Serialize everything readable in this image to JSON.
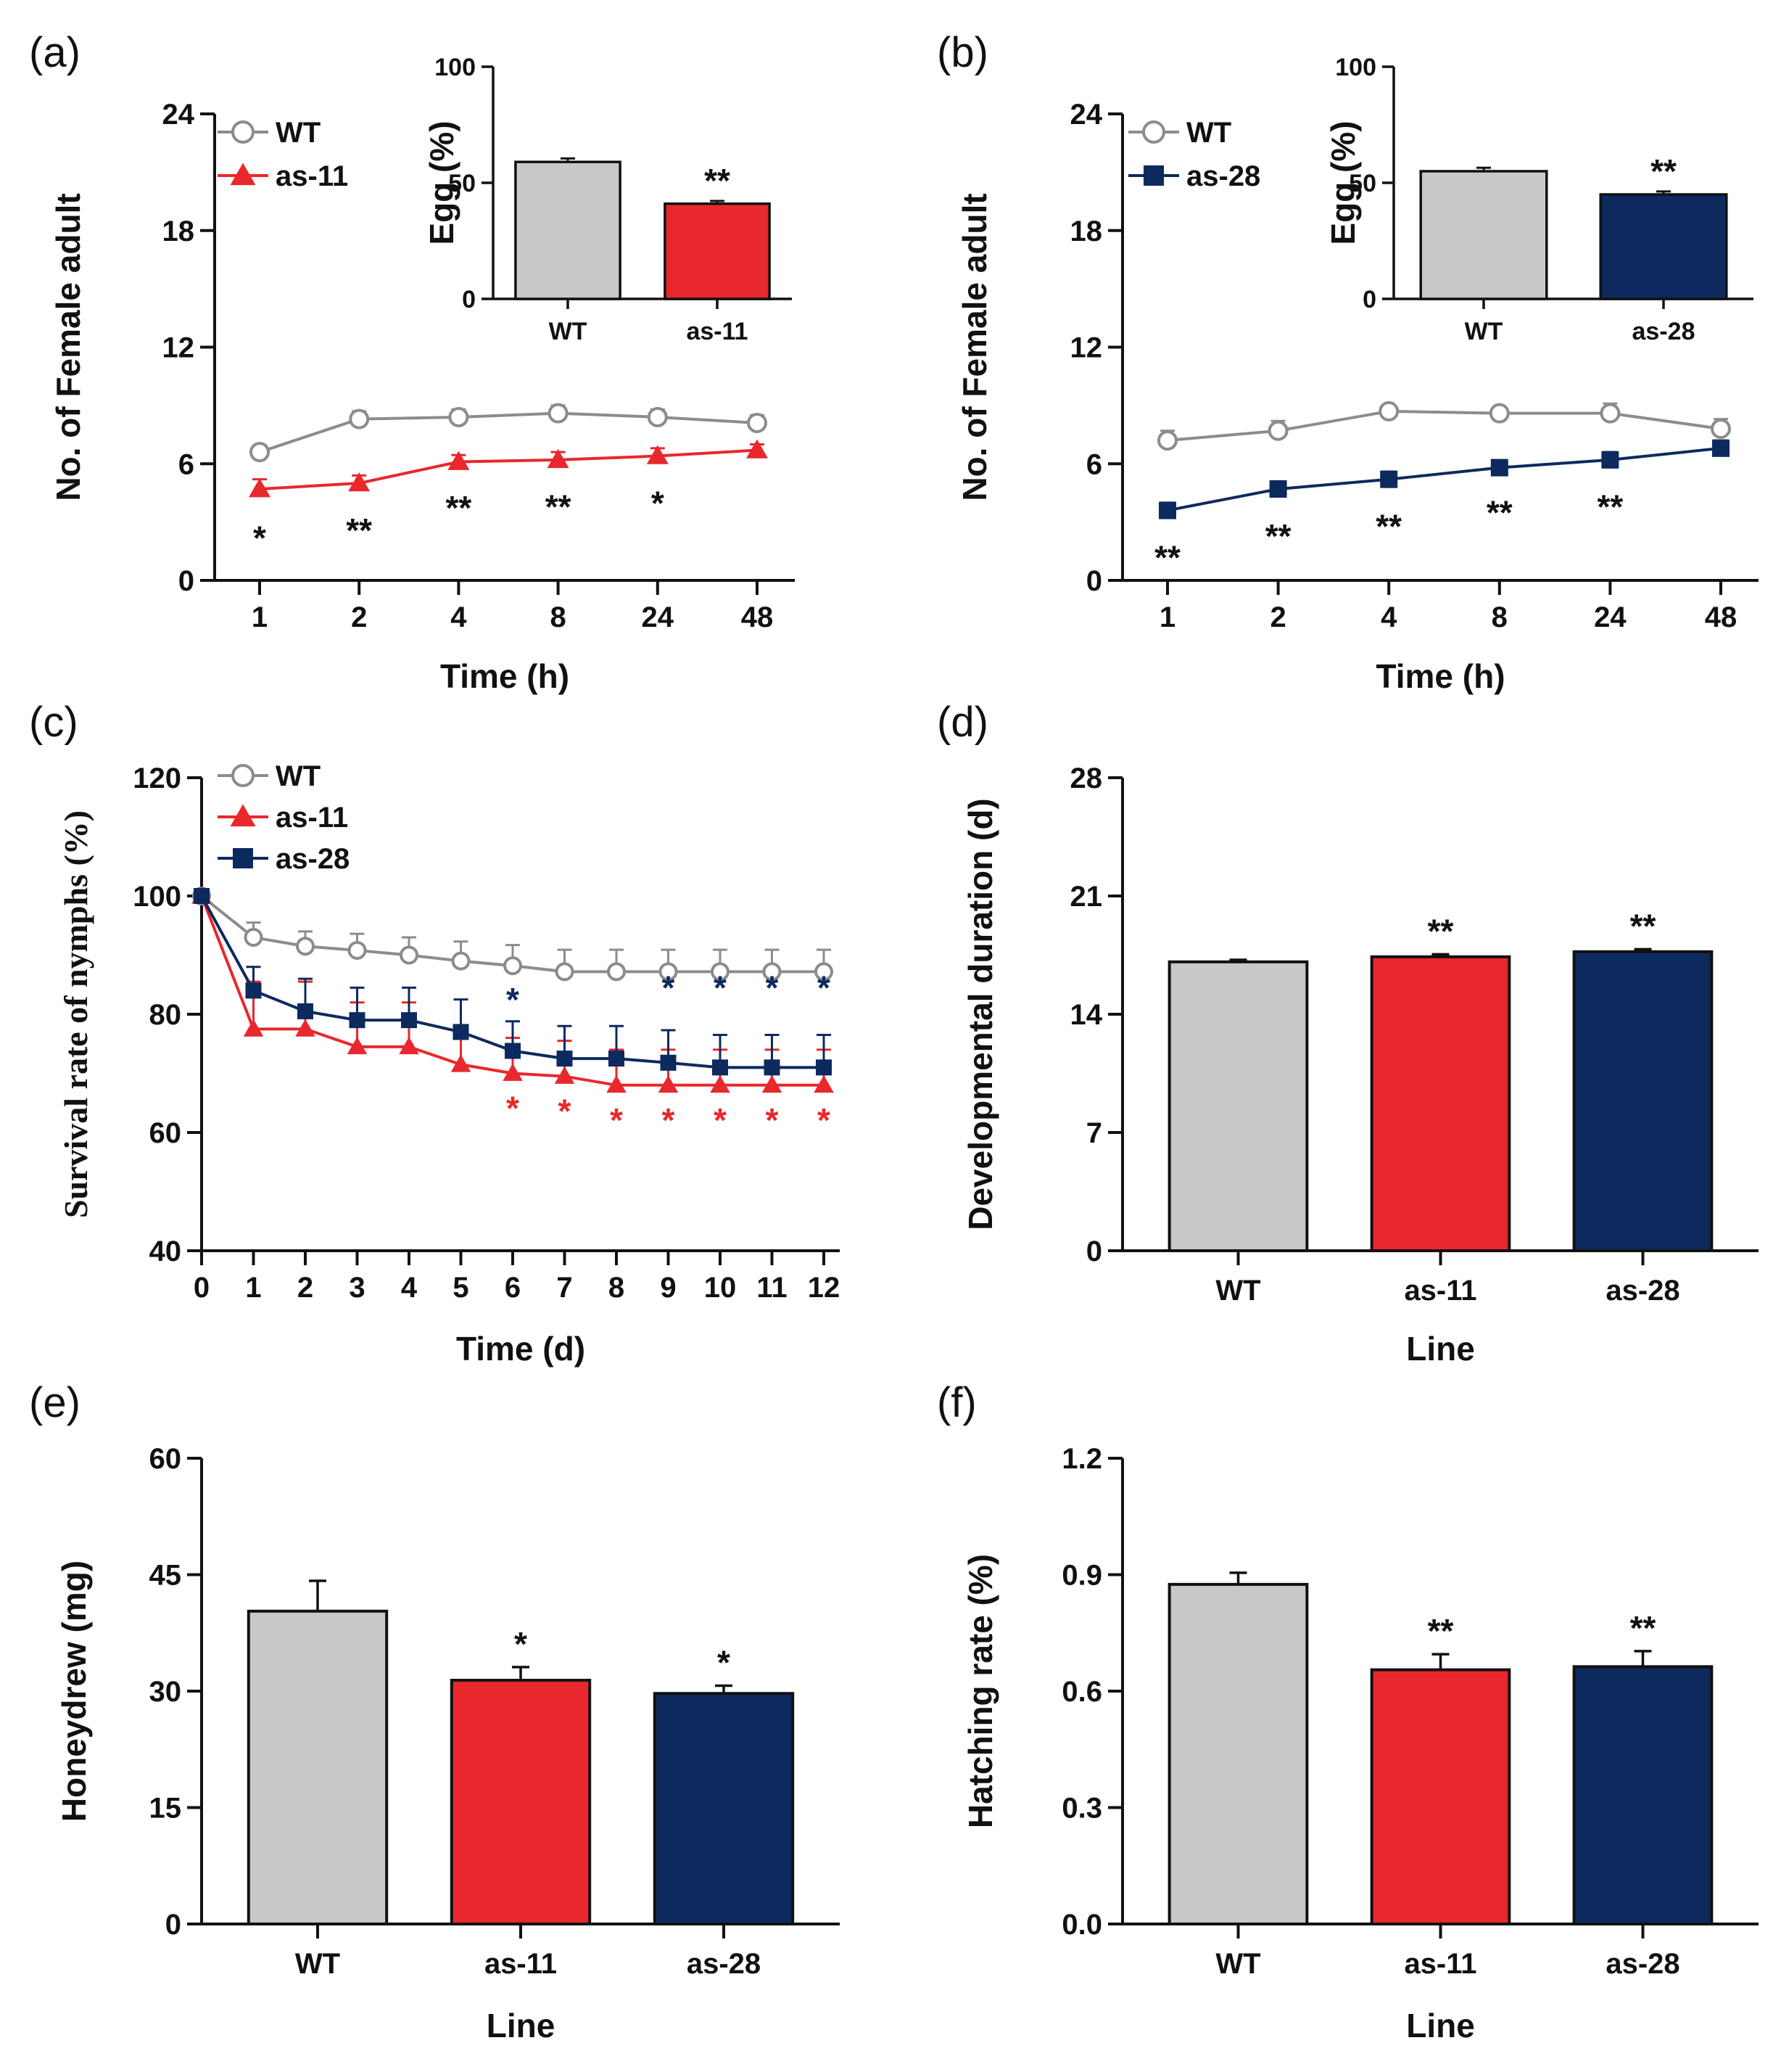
{
  "colors": {
    "wt": "#c8c8c8",
    "wt_line": "#8c8c8c",
    "as11": "#e8282c",
    "as28": "#0d2a5e",
    "axis": "#111111"
  },
  "chart_data": [
    {
      "id": "a",
      "panel": "(a)",
      "type": "line",
      "xlabel": "Time (h)",
      "ylabel": "No. of Female adult",
      "categories": [
        "1",
        "2",
        "4",
        "8",
        "24",
        "48"
      ],
      "ylim": [
        0,
        24
      ],
      "yticks": [
        "0",
        "6",
        "12",
        "18",
        "24"
      ],
      "series": [
        {
          "name": "WT",
          "values": [
            6.6,
            8.3,
            8.4,
            8.6,
            8.4,
            8.1
          ],
          "errors": [
            0.35,
            0.4,
            0.4,
            0.4,
            0.4,
            0.4
          ],
          "marker": "circle",
          "color": "#8c8c8c"
        },
        {
          "name": "as-11",
          "values": [
            4.7,
            5.0,
            6.1,
            6.2,
            6.4,
            6.7
          ],
          "errors": [
            0.5,
            0.4,
            0.35,
            0.4,
            0.4,
            0.3
          ],
          "marker": "triangle",
          "color": "#e8282c"
        }
      ],
      "annotations": [
        "*",
        "**",
        "**",
        "**",
        "*",
        ""
      ],
      "inset": {
        "type": "bar",
        "ylabel": "Egg (%)",
        "categories": [
          "WT",
          "as-11"
        ],
        "values": [
          59,
          41
        ],
        "errors": [
          1.5,
          1.2
        ],
        "ylim": [
          0,
          100
        ],
        "yticks": [
          "0",
          "50",
          "100"
        ],
        "annotations": [
          "",
          "**"
        ],
        "colors": [
          "#c8c8c8",
          "#e8282c"
        ]
      }
    },
    {
      "id": "b",
      "panel": "(b)",
      "type": "line",
      "xlabel": "Time (h)",
      "ylabel": "No. of Female adult",
      "categories": [
        "1",
        "2",
        "4",
        "8",
        "24",
        "48"
      ],
      "ylim": [
        0,
        24
      ],
      "yticks": [
        "0",
        "6",
        "12",
        "18",
        "24"
      ],
      "series": [
        {
          "name": "WT",
          "values": [
            7.2,
            7.7,
            8.7,
            8.6,
            8.6,
            7.8
          ],
          "errors": [
            0.5,
            0.5,
            0.3,
            0.3,
            0.5,
            0.5
          ],
          "marker": "circle",
          "color": "#8c8c8c"
        },
        {
          "name": "as-28",
          "values": [
            3.6,
            4.7,
            5.2,
            5.8,
            6.2,
            6.8
          ],
          "errors": [
            0.4,
            0.4,
            0.4,
            0.3,
            0.4,
            0.4
          ],
          "marker": "square",
          "color": "#0d2a5e"
        }
      ],
      "annotations": [
        "**",
        "**",
        "**",
        "**",
        "**",
        ""
      ],
      "inset": {
        "type": "bar",
        "ylabel": "Egg (%)",
        "categories": [
          "WT",
          "as-28"
        ],
        "values": [
          55,
          45
        ],
        "errors": [
          1.5,
          1.3
        ],
        "ylim": [
          0,
          100
        ],
        "yticks": [
          "0",
          "50",
          "100"
        ],
        "annotations": [
          "",
          "**"
        ],
        "colors": [
          "#c8c8c8",
          "#0d2a5e"
        ]
      }
    },
    {
      "id": "c",
      "panel": "(c)",
      "type": "line",
      "xlabel": "Time (d)",
      "ylabel": "Survival rate of nymphs (%)",
      "categories": [
        "0",
        "1",
        "2",
        "3",
        "4",
        "5",
        "6",
        "7",
        "8",
        "9",
        "10",
        "11",
        "12"
      ],
      "ylim": [
        40,
        120
      ],
      "yticks": [
        "40",
        "60",
        "80",
        "100",
        "120"
      ],
      "series": [
        {
          "name": "WT",
          "values": [
            100,
            93,
            91.5,
            90.8,
            90,
            89,
            88.2,
            87.2,
            87.2,
            87.2,
            87.2,
            87.2,
            87.2
          ],
          "errors": [
            0,
            2.5,
            2.5,
            2.8,
            3,
            3.3,
            3.5,
            3.7,
            3.7,
            3.7,
            3.7,
            3.7,
            3.7
          ],
          "marker": "circle",
          "color": "#8c8c8c"
        },
        {
          "name": "as-11",
          "values": [
            100,
            77.5,
            77.5,
            74.5,
            74.5,
            71.5,
            70,
            69.5,
            68,
            68,
            68,
            68,
            68
          ],
          "errors": [
            0,
            8,
            8,
            7.5,
            7.5,
            6.5,
            6,
            6,
            6,
            6,
            6,
            6,
            6
          ],
          "marker": "triangle",
          "color": "#e8282c"
        },
        {
          "name": "as-28",
          "values": [
            100,
            84,
            80.5,
            79,
            79,
            77,
            73.8,
            72.5,
            72.5,
            71.8,
            71,
            71,
            71
          ],
          "errors": [
            0,
            4,
            5.5,
            5.5,
            5.5,
            5.5,
            5,
            5.5,
            5.5,
            5.5,
            5.5,
            5.5,
            5.5
          ],
          "marker": "square",
          "color": "#0d2a5e"
        }
      ],
      "annotations": [
        {
          "series": "as-28",
          "labels": [
            "",
            "",
            "",
            "",
            "",
            "",
            "*",
            "",
            "",
            "*",
            "*",
            "*",
            "*"
          ]
        },
        {
          "series": "as-11",
          "labels": [
            "",
            "",
            "",
            "",
            "",
            "",
            "*",
            "*",
            "*",
            "*",
            "*",
            "*",
            "*"
          ]
        }
      ]
    },
    {
      "id": "d",
      "panel": "(d)",
      "type": "bar",
      "xlabel": "Line",
      "ylabel": "Developmental duration (d)",
      "categories": [
        "WT",
        "as-11",
        "as-28"
      ],
      "values": [
        17.1,
        17.4,
        17.7
      ],
      "errors": [
        0.12,
        0.15,
        0.15
      ],
      "ylim": [
        0,
        28
      ],
      "yticks": [
        "0",
        "7",
        "14",
        "21",
        "28"
      ],
      "annotations": [
        "",
        "**",
        "**"
      ],
      "colors": [
        "#c8c8c8",
        "#e8282c",
        "#0d2a5e"
      ]
    },
    {
      "id": "e",
      "panel": "(e)",
      "type": "bar",
      "xlabel": "Line",
      "ylabel": "Honeydrew (mg)",
      "categories": [
        "WT",
        "as-11",
        "as-28"
      ],
      "values": [
        40.3,
        31.4,
        29.7
      ],
      "errors": [
        3.9,
        1.7,
        1.0
      ],
      "ylim": [
        0,
        60
      ],
      "yticks": [
        "0",
        "15",
        "30",
        "45",
        "60"
      ],
      "annotations": [
        "",
        "*",
        "*"
      ],
      "colors": [
        "#c8c8c8",
        "#e8282c",
        "#0d2a5e"
      ]
    },
    {
      "id": "f",
      "panel": "(f)",
      "type": "bar",
      "xlabel": "Line",
      "ylabel": "Hatching rate (%)",
      "categories": [
        "WT",
        "as-11",
        "as-28"
      ],
      "values": [
        0.875,
        0.655,
        0.663
      ],
      "errors": [
        0.03,
        0.04,
        0.04
      ],
      "ylim": [
        0,
        1.2
      ],
      "yticks": [
        "0.0",
        "0.3",
        "0.6",
        "0.9",
        "1.2"
      ],
      "annotations": [
        "",
        "**",
        "**"
      ],
      "colors": [
        "#c8c8c8",
        "#e8282c",
        "#0d2a5e"
      ]
    }
  ]
}
